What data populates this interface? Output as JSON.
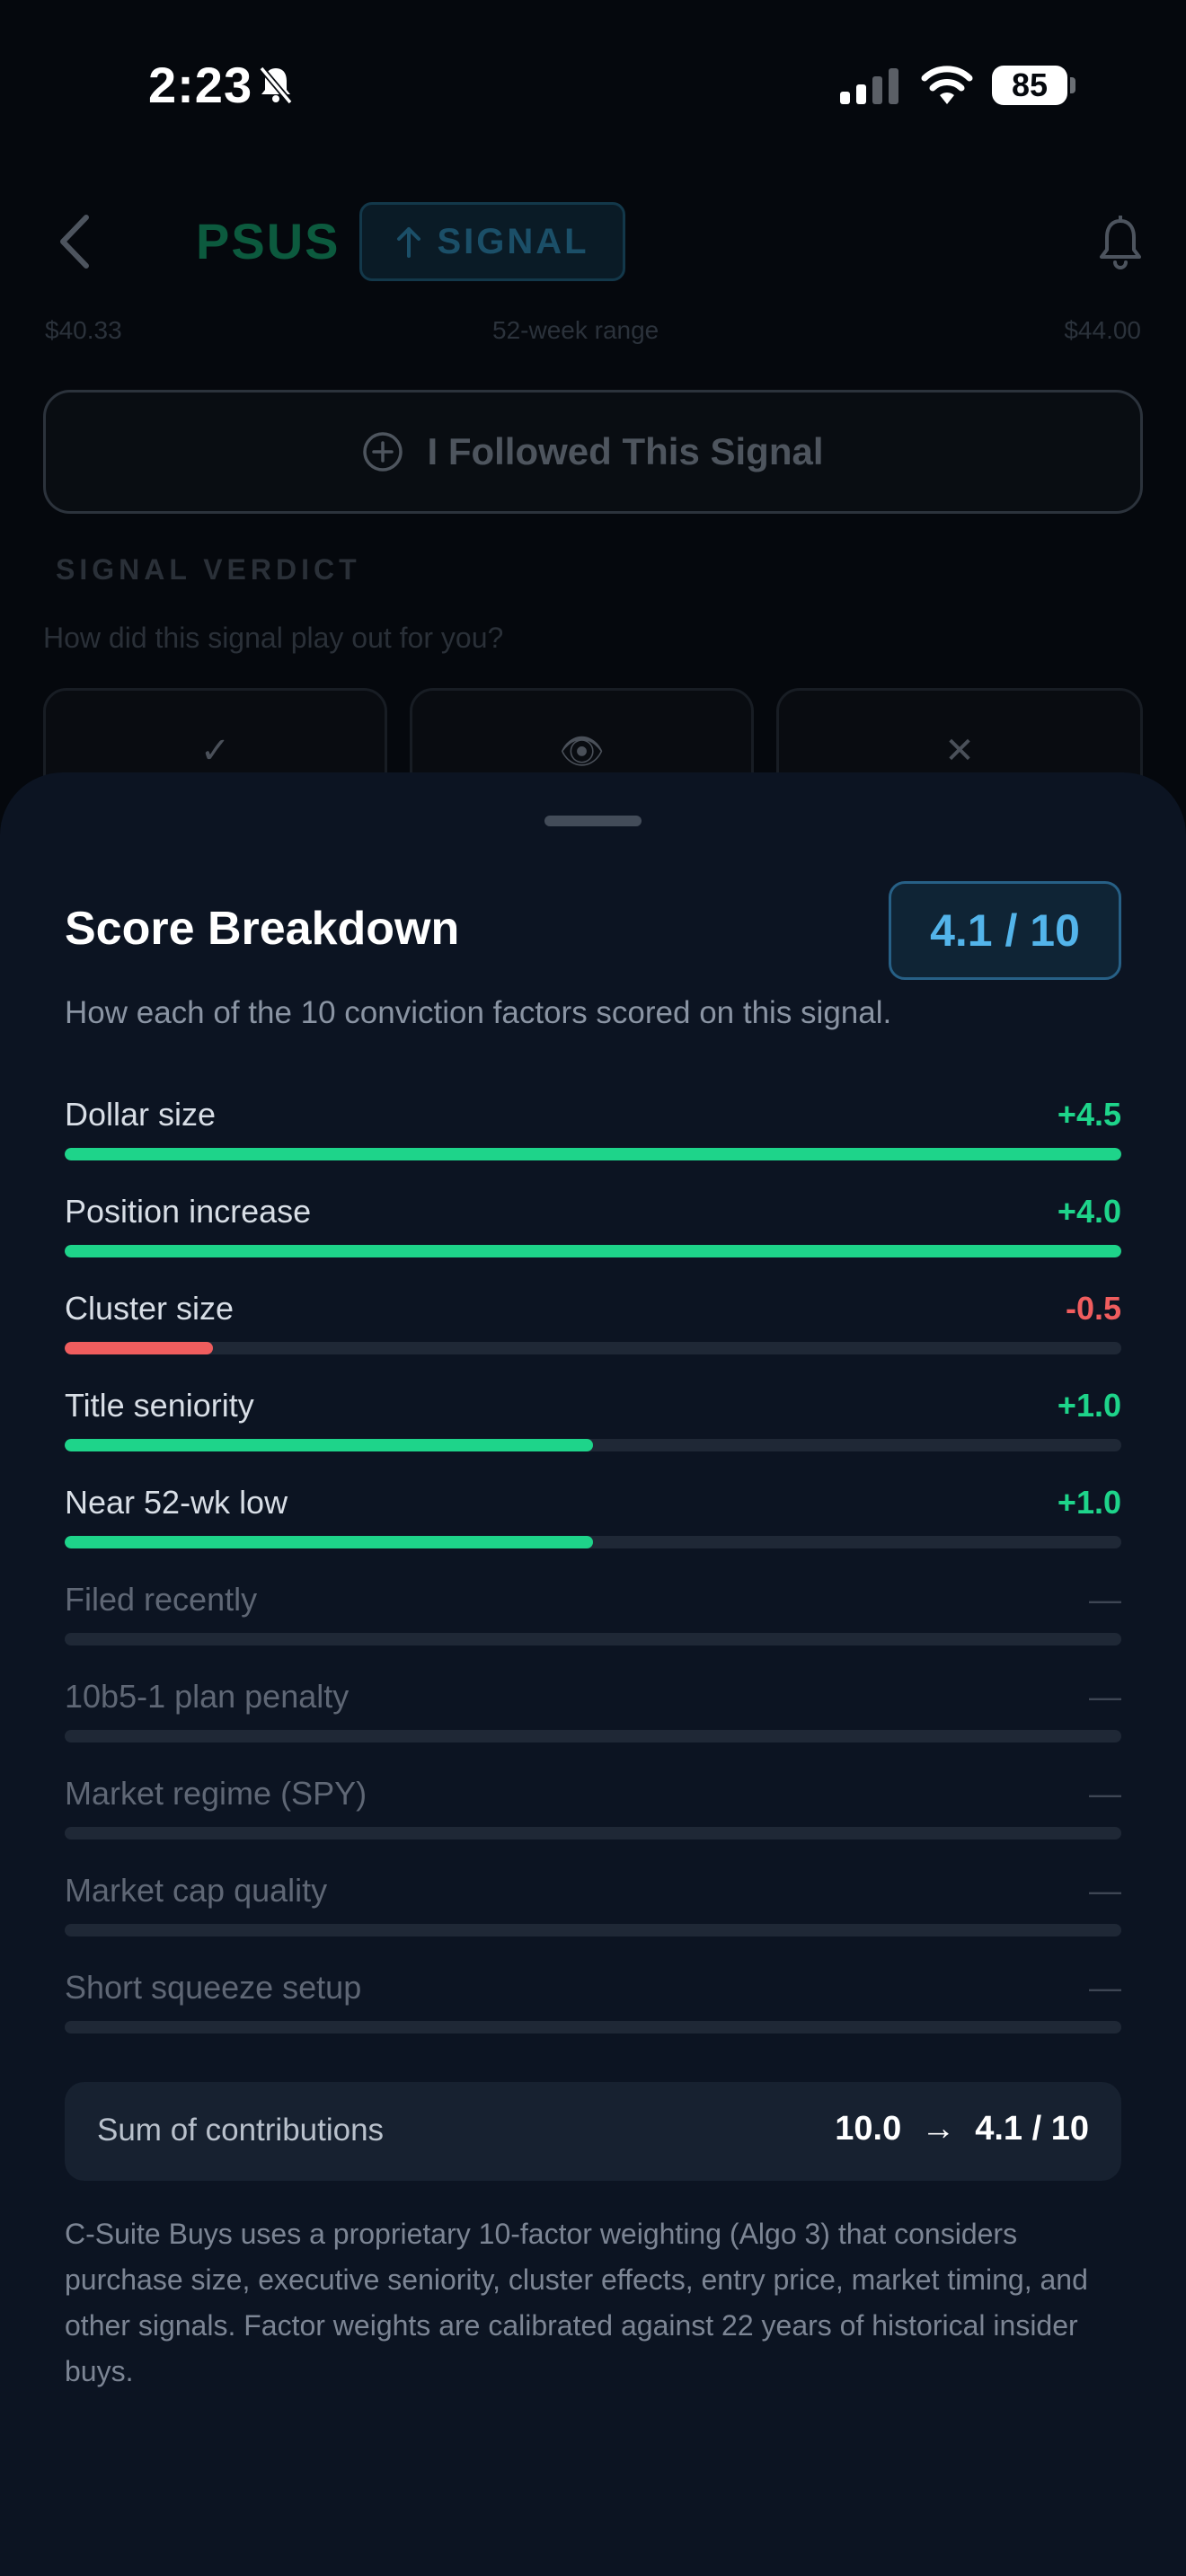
{
  "status_bar": {
    "time": "2:23",
    "battery": "85"
  },
  "header": {
    "ticker": "PSUS",
    "signal_label": "SIGNAL"
  },
  "range": {
    "low": "$40.33",
    "label": "52-week range",
    "high": "$44.00"
  },
  "follow_button": {
    "label": "I Followed This Signal"
  },
  "verdict": {
    "title": "SIGNAL VERDICT",
    "question": "How did this signal play out for you?",
    "options": [
      "✓",
      "👁",
      "✕"
    ]
  },
  "sheet": {
    "title": "Score Breakdown",
    "score": "4.1 / 10",
    "subtitle": "How each of the 10 conviction factors scored on this signal.",
    "factors": [
      {
        "label": "Dollar size",
        "value": "+4.5",
        "fill": 1.0,
        "color": "#1ed48a"
      },
      {
        "label": "Position increase",
        "value": "+4.0",
        "fill": 1.0,
        "color": "#1ed48a"
      },
      {
        "label": "Cluster size",
        "value": "-0.5",
        "fill": 0.14,
        "color": "#f05d5e"
      },
      {
        "label": "Title seniority",
        "value": "+1.0",
        "fill": 0.5,
        "color": "#1ed48a"
      },
      {
        "label": "Near 52-wk low",
        "value": "+1.0",
        "fill": 0.5,
        "color": "#1ed48a"
      },
      {
        "label": "Filed recently",
        "value": "—",
        "fill": 0,
        "color": "#3e4654"
      },
      {
        "label": "10b5-1 plan penalty",
        "value": "—",
        "fill": 0,
        "color": "#3e4654"
      },
      {
        "label": "Market regime (SPY)",
        "value": "—",
        "fill": 0,
        "color": "#3e4654"
      },
      {
        "label": "Market cap quality",
        "value": "—",
        "fill": 0,
        "color": "#3e4654"
      },
      {
        "label": "Short squeeze setup",
        "value": "—",
        "fill": 0,
        "color": "#3e4654"
      }
    ],
    "sum": {
      "label": "Sum of contributions",
      "raw": "10.0",
      "arrow": "→",
      "final": "4.1 / 10"
    },
    "footnote": "C-Suite Buys uses a proprietary 10-factor weighting (Algo 3) that considers purchase size, executive seniority, cluster effects, entry price, market timing, and other signals. Factor weights are calibrated against 22 years of historical insider buys."
  }
}
